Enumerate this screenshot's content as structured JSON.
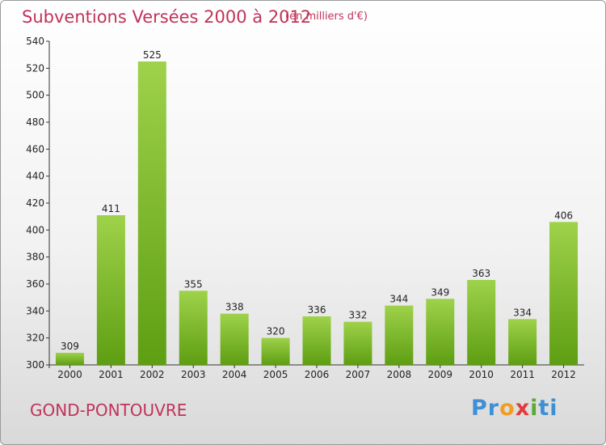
{
  "chart_data": {
    "type": "bar",
    "title": "Subventions Versées 2000 à 2012",
    "subtitle": "(en milliers d'€)",
    "categories": [
      "2000",
      "2001",
      "2002",
      "2003",
      "2004",
      "2005",
      "2006",
      "2007",
      "2008",
      "2009",
      "2010",
      "2011",
      "2012"
    ],
    "values": [
      309,
      411,
      525,
      355,
      338,
      320,
      336,
      332,
      344,
      349,
      363,
      334,
      406
    ],
    "ylim": [
      300,
      540
    ],
    "yticks": [
      300,
      320,
      340,
      360,
      380,
      400,
      420,
      440,
      460,
      480,
      500,
      520,
      540
    ],
    "grid": false,
    "bar_color_top": "#9ed24a",
    "bar_color_bottom": "#5e9e12"
  },
  "commune": "GOND-PONTOUVRE",
  "logo": [
    "P",
    "r",
    "o",
    "x",
    "i",
    "ti"
  ]
}
